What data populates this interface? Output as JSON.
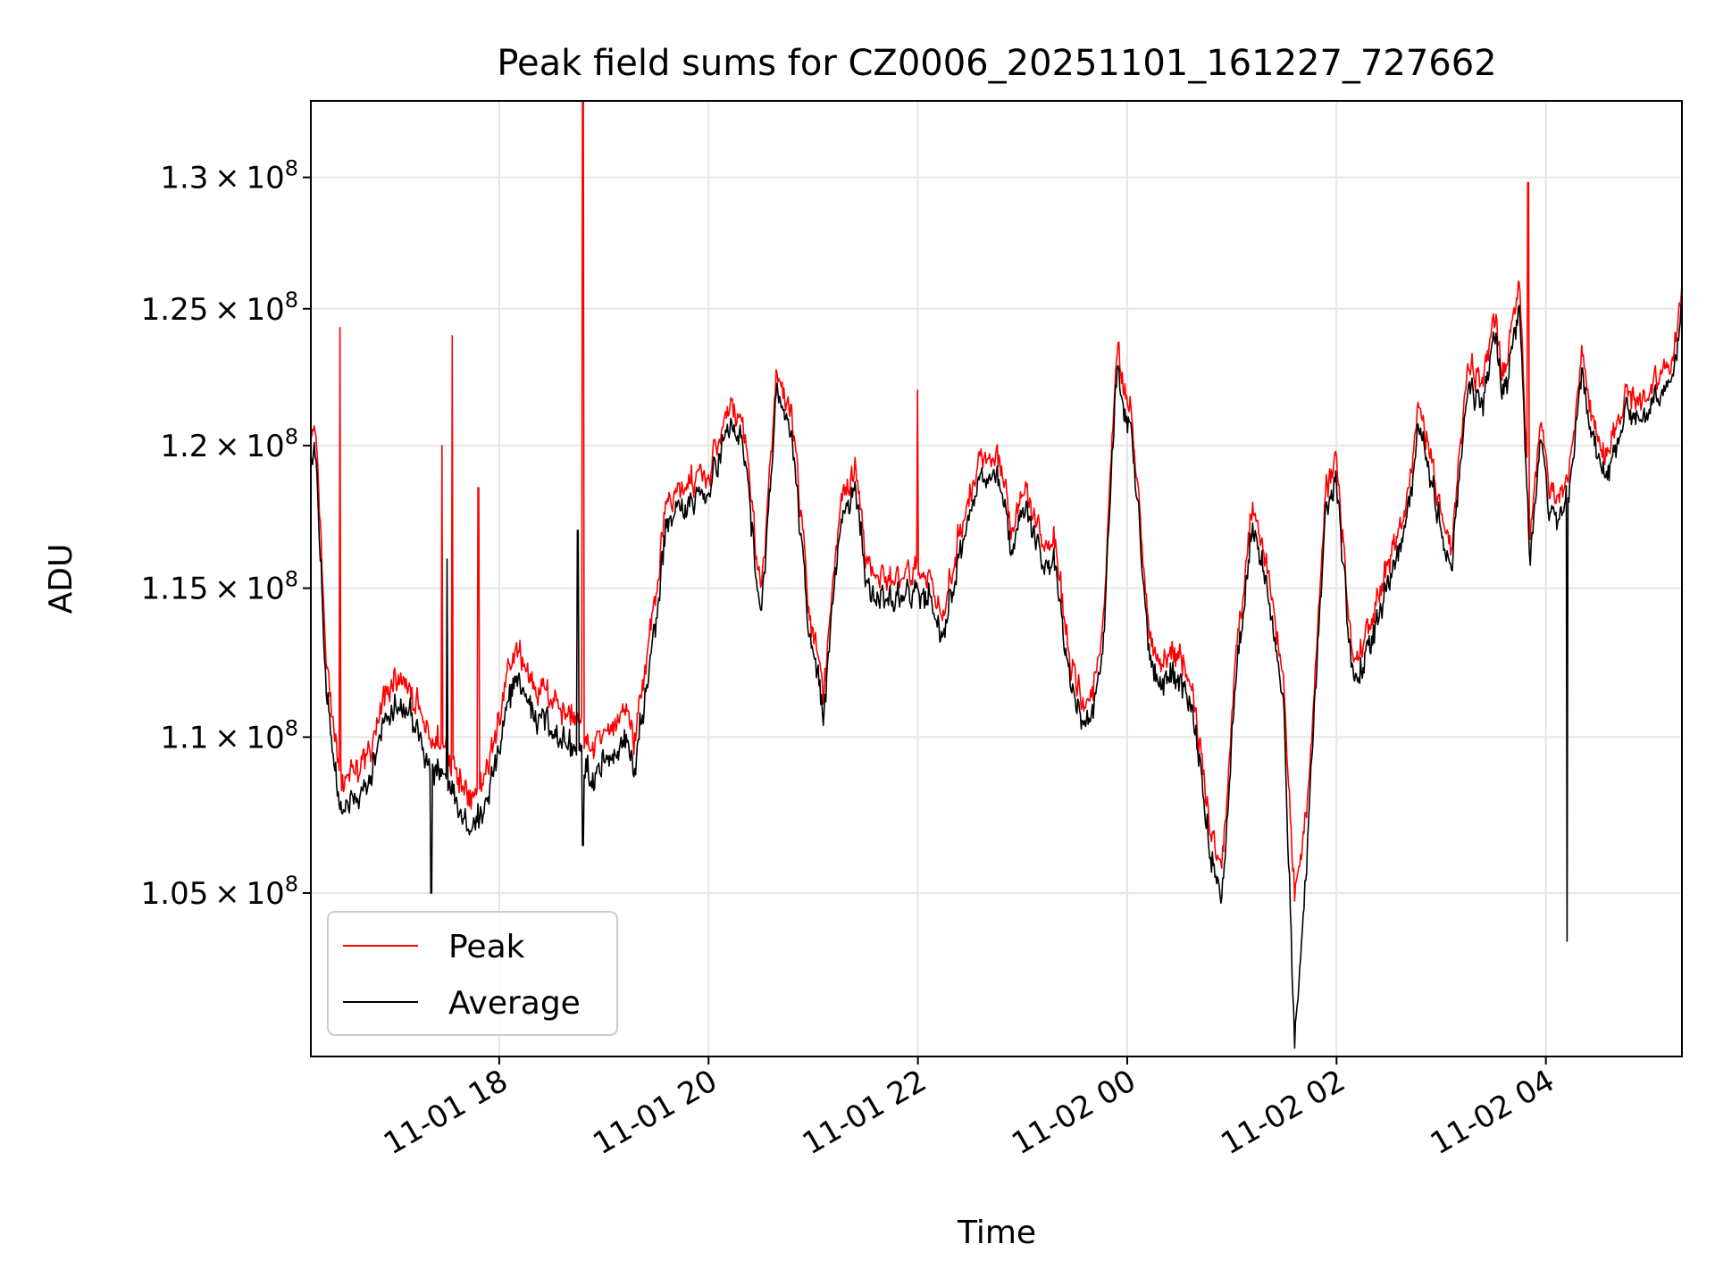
{
  "chart_data": {
    "type": "line",
    "title": "Peak field sums for CZ0006_20251101_161227_727662",
    "xlabel": "Time",
    "ylabel": "ADU",
    "x_unit": "hours since 2025-11-01 00:00",
    "xlim": [
      16.2,
      29.3
    ],
    "ylim": [
      100000000,
      133000000
    ],
    "y_scale": "log",
    "grid": true,
    "legend_position": "lower-left",
    "x_ticks": [
      {
        "value": 18,
        "label": "11-01 18"
      },
      {
        "value": 20,
        "label": "11-01 20"
      },
      {
        "value": 22,
        "label": "11-01 22"
      },
      {
        "value": 24,
        "label": "11-02 00"
      },
      {
        "value": 26,
        "label": "11-02 02"
      },
      {
        "value": 28,
        "label": "11-02 04"
      }
    ],
    "y_ticks": [
      {
        "value": 105000000,
        "mantissa": "1.05",
        "base": "10",
        "exp": "8"
      },
      {
        "value": 110000000,
        "mantissa": "1.1",
        "base": "10",
        "exp": "8"
      },
      {
        "value": 115000000,
        "mantissa": "1.15",
        "base": "10",
        "exp": "8"
      },
      {
        "value": 120000000,
        "mantissa": "1.2",
        "base": "10",
        "exp": "8"
      },
      {
        "value": 125000000,
        "mantissa": "1.25",
        "base": "10",
        "exp": "8"
      },
      {
        "value": 130000000,
        "mantissa": "1.3",
        "base": "10",
        "exp": "8"
      }
    ],
    "series": [
      {
        "name": "Peak",
        "color": "#ff0000",
        "x": [
          16.2,
          16.25,
          16.35,
          16.5,
          16.7,
          16.9,
          17.0,
          17.2,
          17.3,
          17.5,
          17.7,
          17.85,
          18.0,
          18.15,
          18.3,
          18.45,
          18.6,
          18.75,
          18.9,
          19.05,
          19.2,
          19.3,
          19.5,
          19.6,
          19.75,
          20.0,
          20.2,
          20.35,
          20.5,
          20.65,
          20.8,
          20.95,
          21.1,
          21.25,
          21.4,
          21.5,
          21.7,
          21.9,
          22.1,
          22.25,
          22.4,
          22.6,
          22.8,
          22.9,
          23.0,
          23.15,
          23.3,
          23.45,
          23.6,
          23.75,
          23.9,
          24.05,
          24.2,
          24.3,
          24.5,
          24.65,
          24.8,
          24.9,
          25.05,
          25.2,
          25.35,
          25.5,
          25.6,
          25.75,
          25.9,
          26.0,
          26.15,
          26.3,
          26.5,
          26.65,
          26.8,
          26.95,
          27.1,
          27.25,
          27.4,
          27.5,
          27.6,
          27.75,
          27.85,
          27.95,
          28.05,
          28.2,
          28.35,
          28.45,
          28.6,
          28.75,
          28.9,
          29.05,
          29.2,
          29.3
        ],
        "y": [
          120800000,
          120500000,
          112000000,
          108500000,
          109000000,
          111000000,
          112000000,
          111200000,
          110000000,
          109800000,
          108300000,
          108500000,
          110500000,
          113000000,
          112000000,
          111500000,
          111000000,
          110500000,
          109500000,
          110200000,
          111000000,
          110000000,
          115000000,
          118000000,
          118500000,
          119000000,
          121500000,
          120500000,
          114500000,
          122300000,
          121000000,
          114500000,
          111500000,
          117500000,
          119500000,
          116000000,
          115000000,
          115500000,
          115500000,
          114000000,
          117000000,
          119500000,
          119000000,
          117000000,
          119000000,
          117000000,
          116500000,
          112500000,
          111000000,
          112500000,
          123500000,
          121000000,
          114000000,
          112500000,
          113000000,
          111000000,
          107000000,
          105500000,
          113500000,
          118000000,
          115500000,
          111500000,
          104500000,
          109000000,
          118500000,
          119500000,
          112500000,
          113500000,
          116000000,
          117500000,
          121500000,
          118500000,
          116500000,
          123000000,
          122000000,
          125000000,
          122500000,
          126000000,
          116500000,
          121000000,
          118000000,
          118500000,
          123500000,
          120500000,
          119500000,
          122000000,
          121500000,
          122500000,
          123000000,
          125500000
        ],
        "spikes": [
          {
            "x": 16.48,
            "y": 124300000
          },
          {
            "x": 17.45,
            "y": 120000000
          },
          {
            "x": 17.55,
            "y": 124000000
          },
          {
            "x": 17.8,
            "y": 118500000
          },
          {
            "x": 18.8,
            "y": 133000000
          },
          {
            "x": 22.0,
            "y": 122000000
          },
          {
            "x": 27.83,
            "y": 129800000
          }
        ],
        "dips": []
      },
      {
        "name": "Average",
        "color": "#000000",
        "x": [
          16.2,
          16.25,
          16.35,
          16.5,
          16.7,
          16.9,
          17.0,
          17.2,
          17.3,
          17.5,
          17.7,
          17.85,
          18.0,
          18.15,
          18.3,
          18.45,
          18.6,
          18.75,
          18.9,
          19.05,
          19.2,
          19.3,
          19.5,
          19.6,
          19.75,
          20.0,
          20.2,
          20.35,
          20.5,
          20.65,
          20.8,
          20.95,
          21.1,
          21.25,
          21.4,
          21.5,
          21.7,
          21.9,
          22.1,
          22.25,
          22.4,
          22.6,
          22.8,
          22.9,
          23.0,
          23.15,
          23.3,
          23.45,
          23.6,
          23.75,
          23.9,
          24.05,
          24.2,
          24.3,
          24.5,
          24.65,
          24.8,
          24.9,
          25.05,
          25.2,
          25.35,
          25.5,
          25.6,
          25.75,
          25.9,
          26.0,
          26.15,
          26.3,
          26.5,
          26.65,
          26.8,
          26.95,
          27.1,
          27.25,
          27.4,
          27.5,
          27.6,
          27.75,
          27.85,
          27.95,
          28.05,
          28.2,
          28.35,
          28.45,
          28.6,
          28.75,
          28.9,
          29.05,
          29.2,
          29.3
        ],
        "y": [
          120000000,
          119500000,
          111000000,
          107500000,
          108000000,
          110200000,
          111000000,
          110500000,
          109000000,
          108800000,
          107300000,
          107500000,
          109500000,
          112000000,
          111000000,
          110500000,
          110000000,
          109500000,
          108500000,
          109300000,
          110000000,
          109000000,
          114000000,
          117300000,
          117800000,
          118300000,
          120800000,
          119800000,
          113700000,
          121700000,
          120200000,
          113700000,
          110800000,
          116800000,
          118800000,
          115300000,
          114300000,
          114800000,
          114800000,
          113300000,
          116300000,
          118800000,
          118300000,
          116300000,
          118300000,
          116300000,
          115800000,
          111800000,
          110300000,
          111800000,
          122800000,
          120300000,
          113300000,
          111800000,
          112300000,
          110300000,
          106300000,
          104500000,
          112800000,
          117300000,
          114800000,
          110800000,
          100000000,
          108300000,
          117800000,
          118800000,
          111800000,
          112800000,
          115300000,
          116800000,
          120800000,
          117800000,
          115800000,
          122300000,
          121300000,
          124300000,
          121800000,
          125000000,
          115800000,
          120300000,
          117300000,
          117800000,
          122800000,
          119800000,
          118800000,
          121300000,
          120800000,
          121800000,
          122300000,
          124800000
        ],
        "spikes": [
          {
            "x": 17.5,
            "y": 116000000
          },
          {
            "x": 18.75,
            "y": 117000000
          }
        ],
        "dips": [
          {
            "x": 17.35,
            "y": 105000000
          },
          {
            "x": 18.8,
            "y": 106500000
          },
          {
            "x": 28.2,
            "y": 103500000
          }
        ]
      }
    ]
  }
}
